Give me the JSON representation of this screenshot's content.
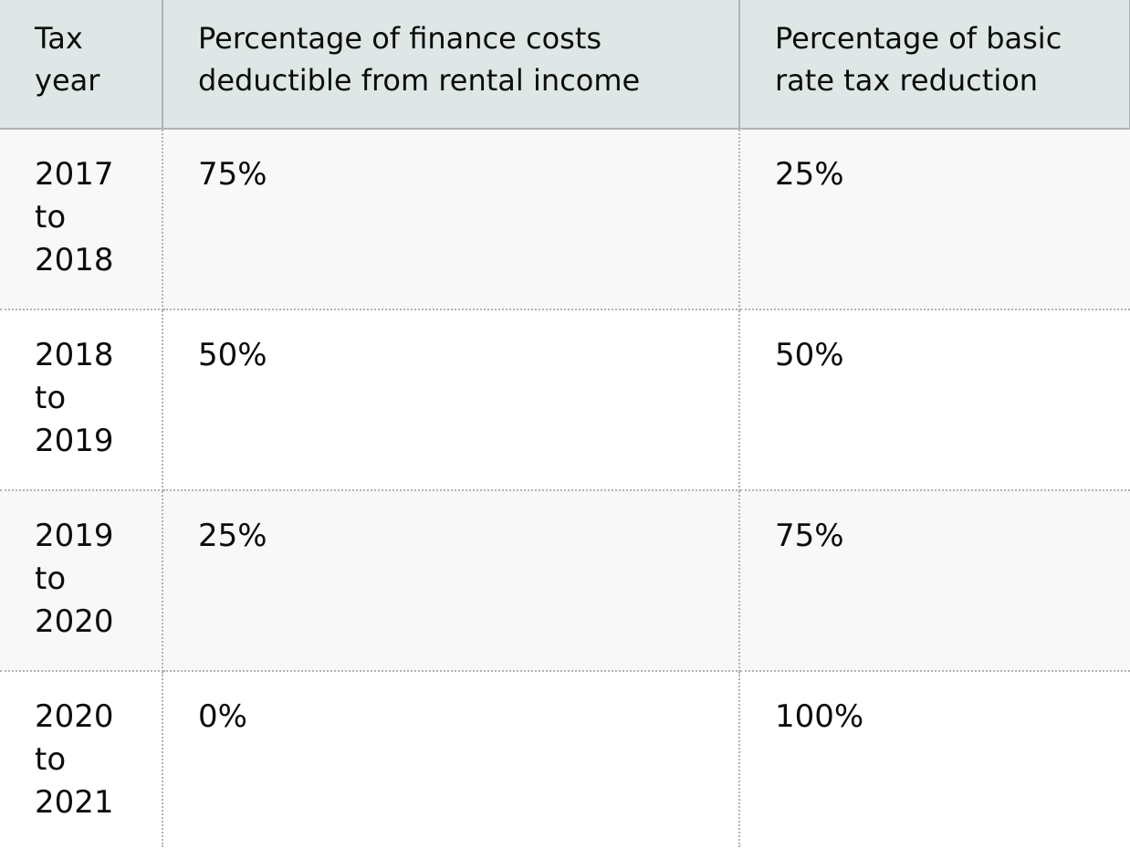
{
  "table": {
    "headers": [
      "Tax year",
      "Percentage of finance costs deductible from rental income",
      "Percentage of basic rate tax reduction"
    ],
    "rows": [
      {
        "tax_year": [
          "2017",
          "to",
          "2018"
        ],
        "deductible": "75%",
        "reduction": "25%"
      },
      {
        "tax_year": [
          "2018",
          "to",
          "2019"
        ],
        "deductible": "50%",
        "reduction": "50%"
      },
      {
        "tax_year": [
          "2019",
          "to",
          "2020"
        ],
        "deductible": "25%",
        "reduction": "75%"
      },
      {
        "tax_year": [
          "2020",
          "to",
          "2021"
        ],
        "deductible": "0%",
        "reduction": "100%"
      }
    ]
  }
}
